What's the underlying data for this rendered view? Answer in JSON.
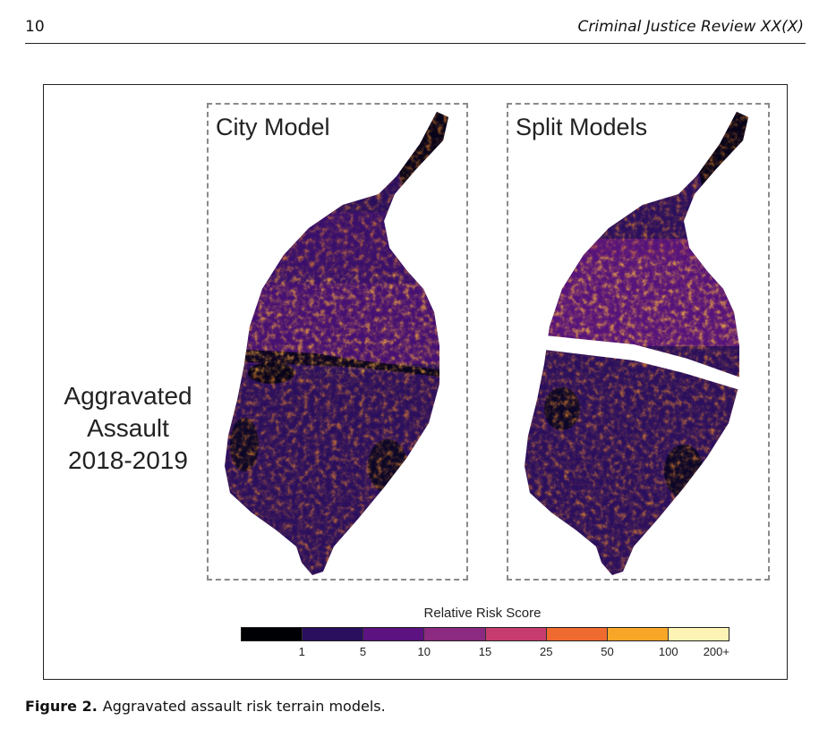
{
  "header": {
    "page_number": "10",
    "journal": "Criminal Justice Review XX(X)"
  },
  "figure": {
    "row_label": [
      "Aggravated",
      "Assault",
      "2018-2019"
    ],
    "panels": [
      {
        "title": "City Model"
      },
      {
        "title": "Split Models"
      }
    ],
    "legend": {
      "title": "Relative Risk Score",
      "ticks": [
        "1",
        "5",
        "10",
        "15",
        "25",
        "50",
        "100",
        "200+"
      ],
      "colors": [
        "#000004",
        "#2a0f5e",
        "#5c1281",
        "#8c2981",
        "#c63c6e",
        "#ef6a2f",
        "#f8a628",
        "#fcf3b4"
      ]
    }
  },
  "caption": {
    "label": "Figure 2.",
    "text": "Aggravated assault risk terrain models."
  }
}
